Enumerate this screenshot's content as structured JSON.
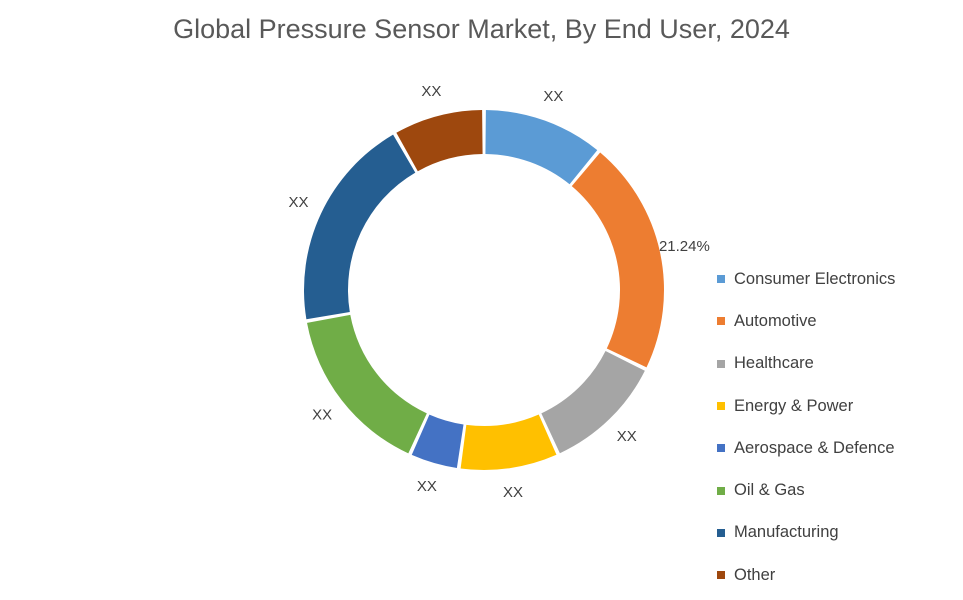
{
  "chart_data": {
    "type": "pie",
    "variant": "donut",
    "title": "Global Pressure Sensor Market, By End User, 2024",
    "legend_position": "right",
    "categories": [
      "Consumer Electronics",
      "Automotive",
      "Healthcare",
      "Energy & Power",
      "Aerospace & Defence",
      "Oil & Gas",
      "Manufacturing",
      "Other"
    ],
    "values": [
      11.0,
      21.24,
      11.0,
      9.0,
      4.5,
      15.5,
      19.5,
      8.26
    ],
    "labels": [
      "XX",
      "21.24%",
      "XX",
      "XX",
      "XX",
      "XX",
      "XX",
      "XX"
    ],
    "colors": [
      "#5B9BD5",
      "#ED7D31",
      "#A5A5A5",
      "#FFC000",
      "#4472C4",
      "#70AD47",
      "#255E91",
      "#9E480E"
    ]
  }
}
